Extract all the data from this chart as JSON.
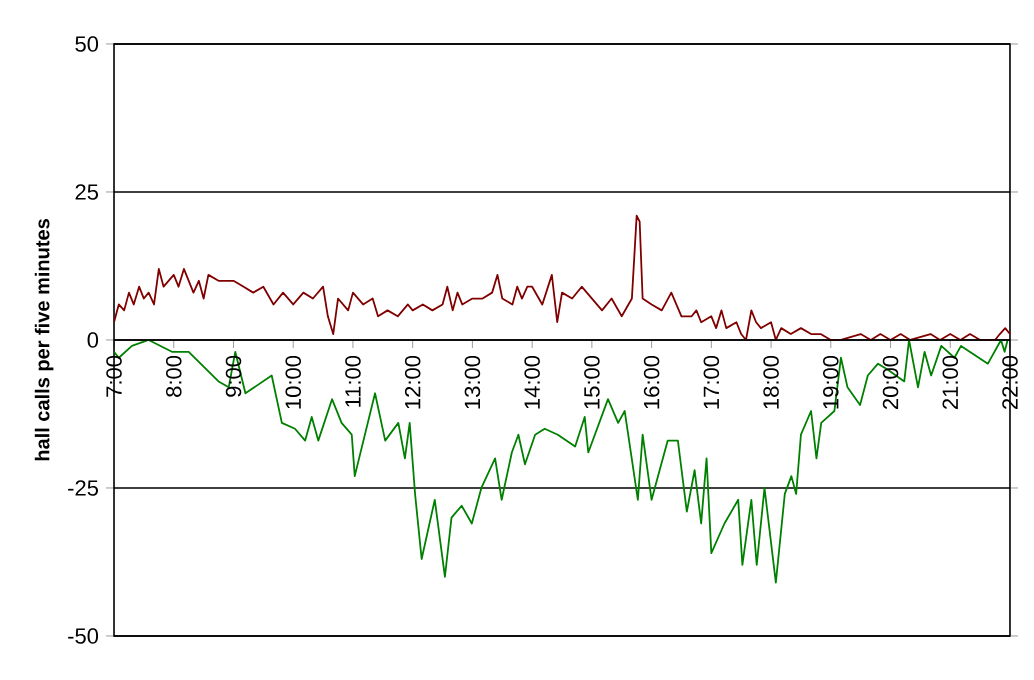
{
  "chart_data": {
    "type": "line",
    "ylabel": "hall calls per five minutes",
    "xlim": [
      7,
      22
    ],
    "xticks": [
      {
        "value": 7,
        "label": "7:00"
      },
      {
        "value": 8,
        "label": "8:00"
      },
      {
        "value": 9,
        "label": "9:00"
      },
      {
        "value": 10,
        "label": "10:00"
      },
      {
        "value": 11,
        "label": "11:00"
      },
      {
        "value": 12,
        "label": "12:00"
      },
      {
        "value": 13,
        "label": "13:00"
      },
      {
        "value": 14,
        "label": "14:00"
      },
      {
        "value": 15,
        "label": "15:00"
      },
      {
        "value": 16,
        "label": "16:00"
      },
      {
        "value": 17,
        "label": "17:00"
      },
      {
        "value": 18,
        "label": "18:00"
      },
      {
        "value": 19,
        "label": "19:00"
      },
      {
        "value": 20,
        "label": "20:00"
      },
      {
        "value": 21,
        "label": "21:00"
      },
      {
        "value": 22,
        "label": "22:00"
      }
    ],
    "ylim": [
      -50,
      50
    ],
    "yticks": [
      -50,
      -25,
      0,
      25,
      50
    ],
    "grid": "y",
    "marker": "none",
    "line_style": "solid",
    "series": [
      {
        "color": "#800000",
        "x": [
          7.0,
          7.08,
          7.17,
          7.25,
          7.33,
          7.42,
          7.5,
          7.58,
          7.67,
          7.75,
          7.83,
          8.0,
          8.08,
          8.17,
          8.33,
          8.42,
          8.5,
          8.58,
          8.75,
          9.0,
          9.17,
          9.33,
          9.5,
          9.67,
          9.83,
          10.0,
          10.17,
          10.33,
          10.5,
          10.58,
          10.67,
          10.75,
          10.92,
          11.0,
          11.17,
          11.33,
          11.42,
          11.58,
          11.75,
          11.92,
          12.0,
          12.17,
          12.33,
          12.5,
          12.58,
          12.67,
          12.75,
          12.83,
          13.0,
          13.17,
          13.33,
          13.42,
          13.5,
          13.67,
          13.75,
          13.83,
          13.92,
          14.0,
          14.17,
          14.33,
          14.42,
          14.5,
          14.67,
          14.83,
          15.0,
          15.17,
          15.33,
          15.5,
          15.67,
          15.75,
          15.8,
          15.85,
          16.0,
          16.17,
          16.33,
          16.5,
          16.67,
          16.75,
          16.83,
          17.0,
          17.08,
          17.17,
          17.25,
          17.42,
          17.5,
          17.58,
          17.67,
          17.75,
          17.83,
          18.0,
          18.08,
          18.17,
          18.33,
          18.5,
          18.67,
          18.83,
          19.0,
          19.17,
          19.5,
          19.67,
          19.83,
          20.0,
          20.17,
          20.33,
          20.67,
          20.83,
          21.0,
          21.17,
          21.33,
          21.5,
          21.75,
          21.83,
          21.92,
          22.0
        ],
        "values": [
          3,
          6,
          5,
          8,
          6,
          9,
          7,
          8,
          6,
          12,
          9,
          11,
          9,
          12,
          8,
          10,
          7,
          11,
          10,
          10,
          9,
          8,
          9,
          6,
          8,
          6,
          8,
          7,
          9,
          4,
          1,
          7,
          5,
          8,
          6,
          7,
          4,
          5,
          4,
          6,
          5,
          6,
          5,
          6,
          9,
          5,
          8,
          6,
          7,
          7,
          8,
          11,
          7,
          6,
          9,
          7,
          9,
          9,
          6,
          11,
          3,
          8,
          7,
          9,
          7,
          5,
          7,
          4,
          7,
          21,
          20,
          7,
          6,
          5,
          8,
          4,
          4,
          5,
          3,
          4,
          2,
          5,
          2,
          3,
          1,
          0,
          5,
          3,
          2,
          3,
          0,
          2,
          1,
          2,
          1,
          1,
          0,
          0,
          1,
          0,
          1,
          0,
          1,
          0,
          1,
          0,
          1,
          0,
          1,
          0,
          0,
          1,
          2,
          1
        ]
      },
      {
        "color": "#008000",
        "x": [
          7.0,
          7.08,
          7.3,
          7.58,
          7.97,
          8.25,
          8.75,
          8.92,
          9.03,
          9.2,
          9.64,
          9.81,
          10.03,
          10.2,
          10.31,
          10.42,
          10.65,
          10.81,
          10.98,
          11.03,
          11.37,
          11.54,
          11.76,
          11.87,
          11.95,
          12.04,
          12.15,
          12.37,
          12.54,
          12.65,
          12.82,
          12.99,
          13.15,
          13.38,
          13.49,
          13.66,
          13.77,
          13.88,
          14.05,
          14.21,
          14.43,
          14.72,
          14.88,
          14.94,
          15.27,
          15.44,
          15.55,
          15.77,
          15.85,
          16.0,
          16.27,
          16.44,
          16.59,
          16.72,
          16.83,
          16.92,
          17.0,
          17.22,
          17.45,
          17.52,
          17.67,
          17.76,
          17.89,
          18.08,
          18.23,
          18.34,
          18.42,
          18.5,
          18.67,
          18.76,
          18.84,
          19.06,
          19.17,
          19.28,
          19.49,
          19.62,
          19.79,
          19.95,
          20.23,
          20.31,
          20.46,
          20.57,
          20.68,
          20.85,
          21.07,
          21.18,
          21.63,
          21.85,
          21.91,
          21.96
        ],
        "values": [
          -2,
          -3,
          -1,
          0,
          -2,
          -2,
          -7,
          -8,
          -2,
          -9,
          -6,
          -14,
          -15,
          -17,
          -13,
          -17,
          -10,
          -14,
          -16,
          -23,
          -9,
          -17,
          -14,
          -20,
          -14,
          -26,
          -37,
          -27,
          -40,
          -30,
          -28,
          -31,
          -25,
          -20,
          -27,
          -19,
          -16,
          -21,
          -16,
          -15,
          -16,
          -18,
          -13,
          -19,
          -10,
          -14,
          -12,
          -27,
          -16,
          -27,
          -17,
          -17,
          -29,
          -22,
          -31,
          -20,
          -36,
          -31,
          -27,
          -38,
          -27,
          -38,
          -25,
          -41,
          -26,
          -23,
          -26,
          -16,
          -12,
          -20,
          -14,
          -12,
          -3,
          -8,
          -11,
          -6,
          -4,
          -5,
          -7,
          0,
          -8,
          -2,
          -6,
          -1,
          -3,
          -1,
          -4,
          0,
          -2,
          0
        ]
      }
    ]
  }
}
